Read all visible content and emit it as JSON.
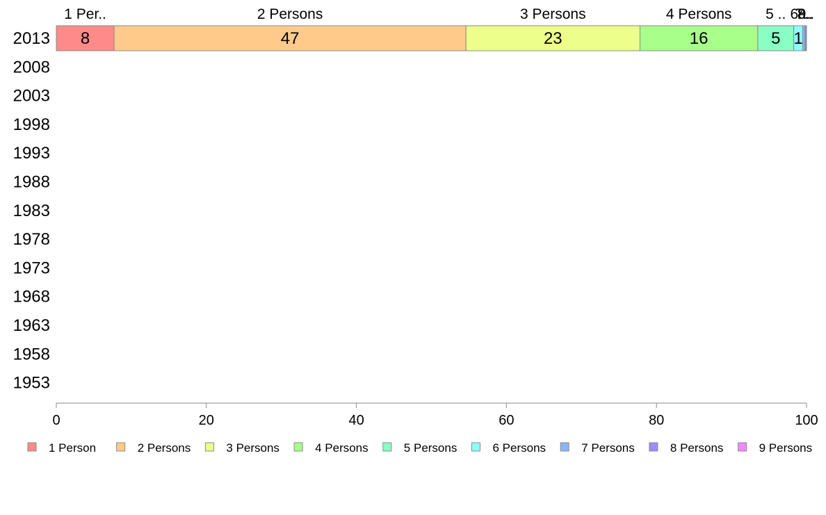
{
  "chart_data": {
    "type": "bar",
    "orientation": "horizontal",
    "stacked": true,
    "categories": [
      "2013",
      "2008",
      "2003",
      "1998",
      "1993",
      "1988",
      "1983",
      "1978",
      "1973",
      "1968",
      "1963",
      "1958",
      "1953"
    ],
    "series": [
      {
        "name": "1 Person",
        "color": "#ff8a8a",
        "values": [
          7.7,
          null,
          null,
          null,
          null,
          null,
          null,
          null,
          null,
          null,
          null,
          null,
          null
        ],
        "data_label": "8",
        "top_label": "1 Per.."
      },
      {
        "name": "2 Persons",
        "color": "#ffca8a",
        "values": [
          46.9,
          null,
          null,
          null,
          null,
          null,
          null,
          null,
          null,
          null,
          null,
          null,
          null
        ],
        "data_label": "47",
        "top_label": "2 Persons"
      },
      {
        "name": "3 Persons",
        "color": "#edff8a",
        "values": [
          23.2,
          null,
          null,
          null,
          null,
          null,
          null,
          null,
          null,
          null,
          null,
          null,
          null
        ],
        "data_label": "23",
        "top_label": "3 Persons"
      },
      {
        "name": "4 Persons",
        "color": "#a8ff8a",
        "values": [
          15.7,
          null,
          null,
          null,
          null,
          null,
          null,
          null,
          null,
          null,
          null,
          null,
          null
        ],
        "data_label": "16",
        "top_label": "4 Persons"
      },
      {
        "name": "5 Persons",
        "color": "#8affc4",
        "values": [
          4.8,
          null,
          null,
          null,
          null,
          null,
          null,
          null,
          null,
          null,
          null,
          null,
          null
        ],
        "data_label": "5",
        "top_label": "5 .."
      },
      {
        "name": "6 Persons",
        "color": "#8affff",
        "values": [
          1.2,
          null,
          null,
          null,
          null,
          null,
          null,
          null,
          null,
          null,
          null,
          null,
          null
        ],
        "data_label": "1",
        "top_label": "6.."
      },
      {
        "name": "7 Persons",
        "color": "#8ab4ff",
        "values": [
          0.3,
          null,
          null,
          null,
          null,
          null,
          null,
          null,
          null,
          null,
          null,
          null,
          null
        ],
        "data_label": "",
        "top_label": "7.."
      },
      {
        "name": "8 Persons",
        "color": "#a08aff",
        "values": [
          0.1,
          null,
          null,
          null,
          null,
          null,
          null,
          null,
          null,
          null,
          null,
          null,
          null
        ],
        "data_label": "",
        "top_label": "8.."
      },
      {
        "name": "9 Persons",
        "color": "#ee8aff",
        "values": [
          0.1,
          null,
          null,
          null,
          null,
          null,
          null,
          null,
          null,
          null,
          null,
          null,
          null
        ],
        "data_label": "",
        "top_label": "9.."
      }
    ],
    "xlim": [
      0,
      100
    ],
    "xticks": [
      "0",
      "20",
      "40",
      "60",
      "80",
      "100"
    ],
    "xtick_values": [
      0,
      20,
      40,
      60,
      80,
      100
    ],
    "grid": false,
    "legend_position": "bottom"
  }
}
